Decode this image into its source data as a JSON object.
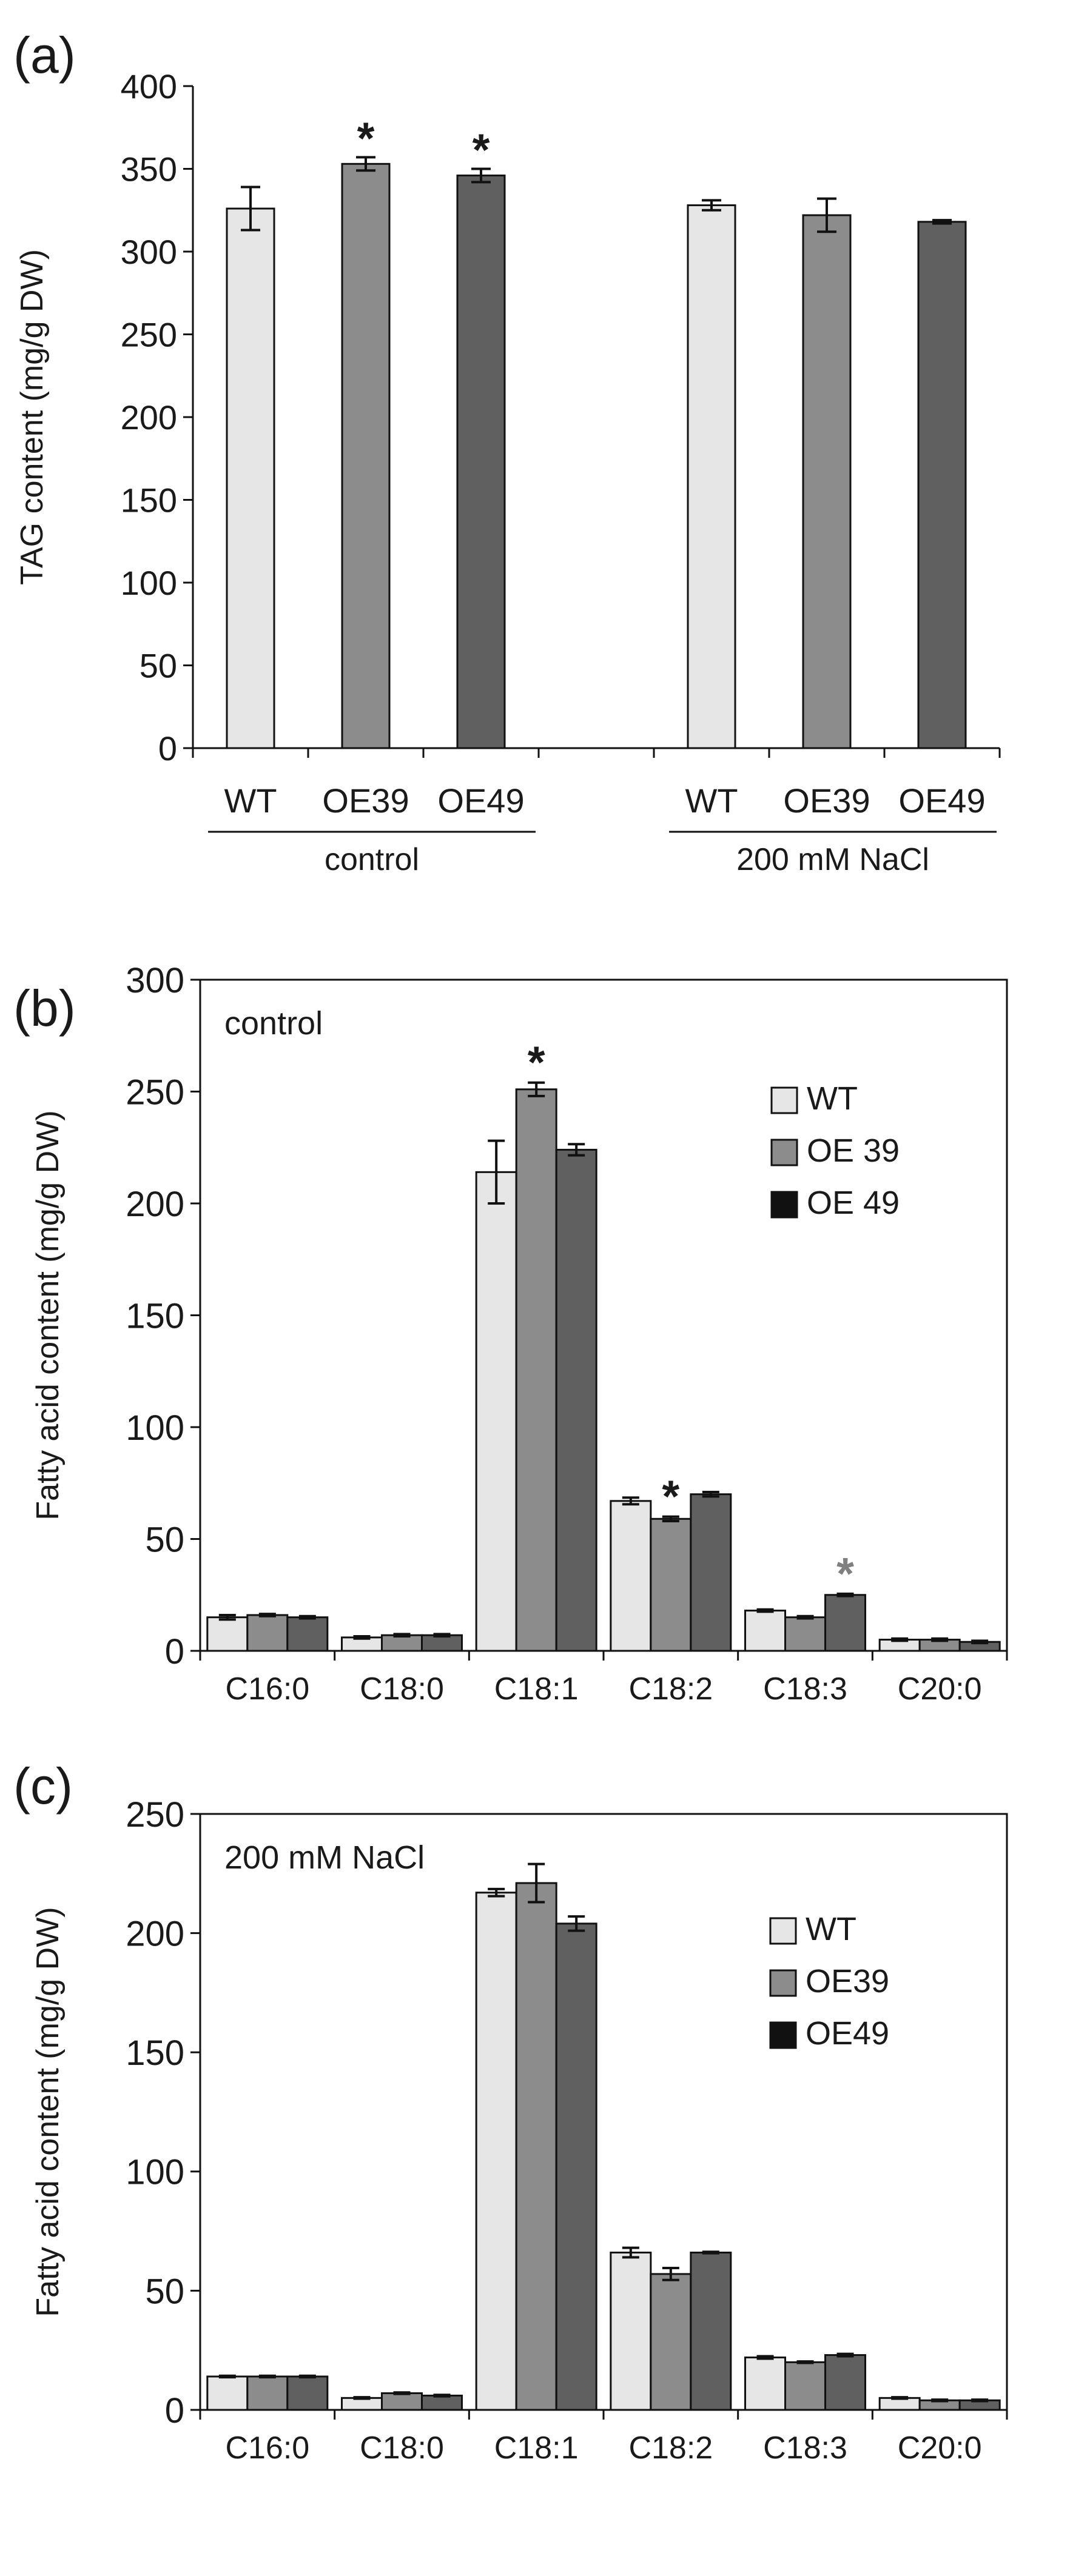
{
  "chart_data": [
    {
      "panel": "(a)",
      "type": "bar",
      "ylabel": "TAG content (mg/g DW)",
      "ylim": [
        0,
        400
      ],
      "yticks": [
        0,
        50,
        100,
        150,
        200,
        250,
        300,
        350,
        400
      ],
      "groups": [
        {
          "label": "control",
          "categories": [
            "WT",
            "OE39",
            "OE49"
          ],
          "values": [
            326,
            353,
            346
          ],
          "errors": [
            13,
            4,
            4
          ],
          "significant": [
            false,
            true,
            true
          ]
        },
        {
          "label": "200 mM NaCl",
          "categories": [
            "WT",
            "OE39",
            "OE49"
          ],
          "values": [
            328,
            322,
            318
          ],
          "errors": [
            3,
            10,
            1
          ],
          "significant": [
            false,
            false,
            false
          ]
        }
      ],
      "colors": [
        "#e6e6e6",
        "#8c8c8c",
        "#606060"
      ],
      "significance_marker": "*"
    },
    {
      "panel": "(b)",
      "type": "bar",
      "annotation": "control",
      "ylabel": "Fatty acid content (mg/g DW)",
      "ylim": [
        0,
        300
      ],
      "yticks": [
        0,
        50,
        100,
        150,
        200,
        250,
        300
      ],
      "categories": [
        "C16:0",
        "C18:0",
        "C18:1",
        "C18:2",
        "C18:3",
        "C20:0"
      ],
      "series": [
        {
          "name": "WT",
          "color": "#e6e6e6",
          "values": [
            15,
            6,
            214,
            67,
            18,
            5
          ],
          "errors": [
            1,
            0.5,
            14,
            1.5,
            0.5,
            0.5
          ],
          "marks": [
            "",
            "",
            "",
            "",
            "",
            ""
          ]
        },
        {
          "name": "OE 39",
          "color": "#8c8c8c",
          "values": [
            16,
            7,
            251,
            59,
            15,
            5
          ],
          "errors": [
            0.5,
            0.5,
            3,
            1,
            0.5,
            0.5
          ],
          "marks": [
            "",
            "",
            "*",
            "*",
            "",
            ""
          ]
        },
        {
          "name": "OE 49",
          "color": "#606060",
          "values": [
            15,
            7,
            224,
            70,
            25,
            4
          ],
          "errors": [
            0.5,
            0.5,
            2.5,
            1,
            0.5,
            0.5
          ],
          "marks": [
            "",
            "",
            "",
            "",
            "*",
            ""
          ]
        }
      ],
      "legend_swatches": [
        "#e6e6e6",
        "#8c8c8c",
        "#111111"
      ],
      "mark_colors": [
        "#1a1a1a",
        "#1a1a1a",
        "#808080"
      ],
      "legend": "right"
    },
    {
      "panel": "(c)",
      "type": "bar",
      "annotation": "200 mM NaCl",
      "ylabel": "Fatty acid content (mg/g DW)",
      "ylim": [
        0,
        250
      ],
      "yticks": [
        0,
        50,
        100,
        150,
        200,
        250
      ],
      "categories": [
        "C16:0",
        "C18:0",
        "C18:1",
        "C18:2",
        "C18:3",
        "C20:0"
      ],
      "series": [
        {
          "name": "WT",
          "color": "#e6e6e6",
          "values": [
            14,
            5,
            217,
            66,
            22,
            5
          ],
          "errors": [
            0.3,
            0.3,
            1.5,
            2,
            0.5,
            0.3
          ],
          "marks": [
            "",
            "",
            "",
            "",
            "",
            ""
          ]
        },
        {
          "name": "OE39",
          "color": "#8c8c8c",
          "values": [
            14,
            7,
            221,
            57,
            20,
            4
          ],
          "errors": [
            0.3,
            0.3,
            8,
            2.5,
            0.3,
            0.3
          ],
          "marks": [
            "",
            "",
            "",
            "",
            "",
            ""
          ]
        },
        {
          "name": "OE49",
          "color": "#606060",
          "values": [
            14,
            6,
            204,
            66,
            23,
            4
          ],
          "errors": [
            0.3,
            0.3,
            3,
            0.3,
            0.5,
            0.3
          ],
          "marks": [
            "",
            "",
            "",
            "",
            "",
            ""
          ]
        }
      ],
      "legend_swatches": [
        "#e6e6e6",
        "#8c8c8c",
        "#111111"
      ],
      "legend": "right"
    }
  ]
}
